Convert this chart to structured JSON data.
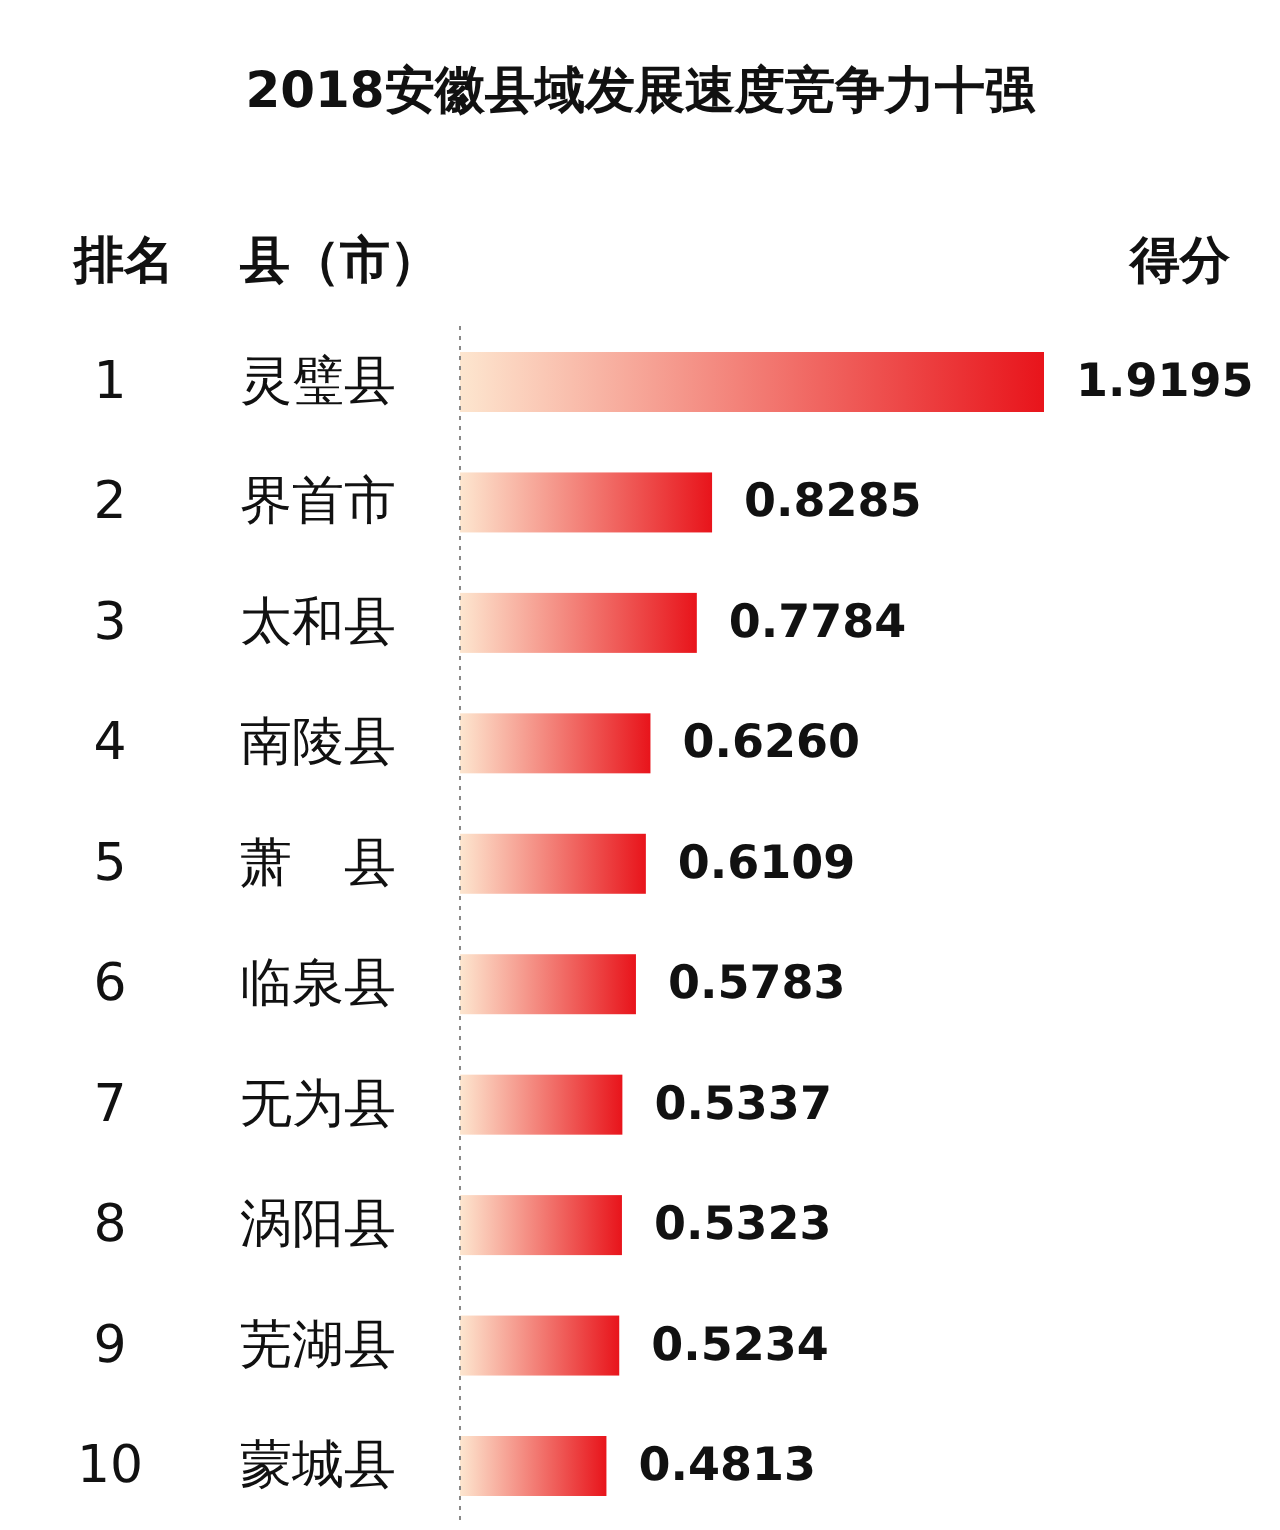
{
  "chart_data": {
    "type": "bar",
    "orientation": "horizontal",
    "title": "2018安徽县域发展速度竞争力十强",
    "categories": [
      "灵璧县",
      "界首市",
      "太和县",
      "南陵县",
      "萧　县",
      "临泉县",
      "无为县",
      "涡阳县",
      "芜湖县",
      "蒙城县"
    ],
    "series": [
      {
        "color": "#e8141b",
        "values": [
          1.9195,
          0.8285,
          0.7784,
          0.626,
          0.6109,
          0.5783,
          0.5337,
          0.5323,
          0.5234,
          0.4813
        ],
        "value_labels": [
          "1.9195",
          "0.8285",
          "0.7784",
          "0.6260",
          "0.6109",
          "0.5783",
          "0.5337",
          "0.5323",
          "0.5234",
          "0.4813"
        ]
      }
    ],
    "annotations": [
      "排名",
      "县（市）",
      "得分",
      "1",
      "2",
      "3",
      "4",
      "5",
      "6",
      "7",
      "8",
      "9",
      "10"
    ]
  }
}
